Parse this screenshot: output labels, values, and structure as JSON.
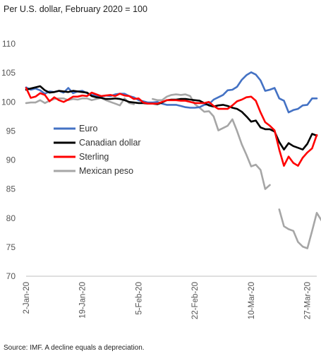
{
  "chart_data": {
    "type": "line",
    "subtitle": "Per U.S. dollar, February 2020 = 100",
    "source": "Source: IMF. A decline equals a depreciation.",
    "ylim": [
      70,
      110
    ],
    "yticks": [
      "70",
      "75",
      "80",
      "85",
      "90",
      "95",
      "100",
      "105",
      "110"
    ],
    "xlim": [
      0,
      61
    ],
    "xticks": [
      {
        "label": "2-Jan-20",
        "x": 0
      },
      {
        "label": "19-Jan-20",
        "x": 12
      },
      {
        "label": "5-Feb-20",
        "x": 24
      },
      {
        "label": "22-Feb-20",
        "x": 36
      },
      {
        "label": "10-Mar-20",
        "x": 48
      },
      {
        "label": "27-Mar-20",
        "x": 60
      }
    ],
    "grid": false,
    "legend_position": "left-middle",
    "series": [
      {
        "name": "Euro",
        "color": "#4472C4",
        "points": [
          [
            0,
            102.5
          ],
          [
            1,
            102.1
          ],
          [
            2,
            102.3
          ],
          [
            3,
            102.0
          ],
          [
            4,
            101.4
          ],
          [
            5,
            101.8
          ],
          [
            6,
            101.7
          ],
          [
            7,
            101.9
          ],
          [
            8,
            101.6
          ],
          [
            9,
            102.4
          ],
          [
            10,
            101.5
          ],
          [
            11,
            101.8
          ],
          [
            12,
            101.9
          ],
          [
            13,
            101.5
          ],
          [
            14,
            101.2
          ],
          [
            15,
            101.1
          ],
          [
            16,
            100.9
          ],
          [
            17,
            101.1
          ],
          [
            18,
            101.0
          ],
          [
            19,
            101.3
          ],
          [
            20,
            101.4
          ],
          [
            21,
            101.4
          ],
          [
            22,
            101.0
          ],
          [
            23,
            100.8
          ],
          [
            24,
            100.3
          ],
          [
            25,
            100.1
          ],
          [
            26,
            99.9
          ],
          [
            27,
            99.9
          ],
          [
            28,
            100.0
          ],
          [
            29,
            99.7
          ],
          [
            30,
            99.5
          ],
          [
            31,
            99.5
          ],
          [
            32,
            99.5
          ],
          [
            33,
            99.3
          ],
          [
            34,
            99.1
          ],
          [
            35,
            99.0
          ],
          [
            36,
            99.0
          ],
          [
            37,
            99.1
          ],
          [
            38,
            99.5
          ],
          [
            39,
            99.6
          ],
          [
            40,
            100.4
          ],
          [
            41,
            100.8
          ],
          [
            42,
            101.2
          ],
          [
            43,
            102.0
          ],
          [
            44,
            102.1
          ],
          [
            45,
            102.6
          ],
          [
            46,
            103.8
          ],
          [
            47,
            104.6
          ],
          [
            48,
            105.1
          ],
          [
            49,
            104.7
          ],
          [
            50,
            103.7
          ],
          [
            51,
            101.9
          ],
          [
            52,
            102.1
          ],
          [
            53,
            102.4
          ],
          [
            54,
            100.6
          ],
          [
            55,
            100.2
          ],
          [
            56,
            98.2
          ],
          [
            57,
            98.6
          ],
          [
            58,
            98.8
          ],
          [
            59,
            99.4
          ],
          [
            60,
            99.5
          ],
          [
            61,
            100.6
          ],
          [
            62,
            100.6
          ]
        ]
      },
      {
        "name": "Canadian dollar",
        "color": "#000000",
        "points": [
          [
            0,
            102.1
          ],
          [
            1,
            102.3
          ],
          [
            2,
            102.5
          ],
          [
            3,
            102.7
          ],
          [
            4,
            102.0
          ],
          [
            5,
            101.6
          ],
          [
            6,
            101.7
          ],
          [
            7,
            101.9
          ],
          [
            8,
            101.8
          ],
          [
            9,
            101.7
          ],
          [
            10,
            101.9
          ],
          [
            11,
            101.8
          ],
          [
            12,
            101.7
          ],
          [
            13,
            101.6
          ],
          [
            14,
            101.0
          ],
          [
            15,
            100.8
          ],
          [
            16,
            100.7
          ],
          [
            17,
            100.5
          ],
          [
            18,
            100.5
          ],
          [
            19,
            100.6
          ],
          [
            20,
            100.5
          ],
          [
            21,
            100.3
          ],
          [
            22,
            100.0
          ],
          [
            23,
            99.9
          ],
          [
            24,
            99.8
          ],
          [
            25,
            99.8
          ],
          [
            26,
            99.7
          ],
          [
            27,
            99.7
          ],
          [
            28,
            99.6
          ],
          [
            29,
            99.9
          ],
          [
            30,
            100.3
          ],
          [
            31,
            100.4
          ],
          [
            32,
            100.4
          ],
          [
            33,
            100.5
          ],
          [
            34,
            100.5
          ],
          [
            35,
            100.4
          ],
          [
            36,
            100.3
          ],
          [
            37,
            100.2
          ],
          [
            38,
            99.8
          ],
          [
            39,
            99.4
          ],
          [
            40,
            99.2
          ],
          [
            41,
            99.4
          ],
          [
            42,
            99.5
          ],
          [
            43,
            99.3
          ],
          [
            44,
            99.0
          ],
          [
            45,
            98.8
          ],
          [
            46,
            98.3
          ],
          [
            47,
            97.5
          ],
          [
            48,
            96.6
          ],
          [
            49,
            96.8
          ],
          [
            50,
            95.6
          ],
          [
            51,
            95.3
          ],
          [
            52,
            95.3
          ],
          [
            53,
            94.9
          ],
          [
            54,
            93.1
          ],
          [
            55,
            91.8
          ],
          [
            56,
            92.9
          ],
          [
            57,
            92.4
          ],
          [
            58,
            92.1
          ],
          [
            59,
            91.8
          ],
          [
            60,
            92.8
          ],
          [
            61,
            94.5
          ],
          [
            62,
            94.2
          ]
        ]
      },
      {
        "name": "Sterling",
        "color": "#FF0000",
        "points": [
          [
            0,
            102.4
          ],
          [
            1,
            100.7
          ],
          [
            2,
            100.9
          ],
          [
            3,
            101.5
          ],
          [
            4,
            101.2
          ],
          [
            5,
            100.1
          ],
          [
            6,
            100.8
          ],
          [
            7,
            100.3
          ],
          [
            8,
            100.0
          ],
          [
            9,
            100.4
          ],
          [
            10,
            100.9
          ],
          [
            11,
            100.9
          ],
          [
            12,
            101.1
          ],
          [
            13,
            101.0
          ],
          [
            14,
            101.6
          ],
          [
            15,
            101.3
          ],
          [
            16,
            101.0
          ],
          [
            17,
            101.1
          ],
          [
            18,
            101.2
          ],
          [
            19,
            101.0
          ],
          [
            20,
            101.4
          ],
          [
            21,
            101.1
          ],
          [
            22,
            101.0
          ],
          [
            23,
            100.5
          ],
          [
            24,
            100.6
          ],
          [
            25,
            99.9
          ],
          [
            26,
            99.7
          ],
          [
            27,
            99.7
          ],
          [
            28,
            99.7
          ],
          [
            29,
            100.0
          ],
          [
            30,
            100.3
          ],
          [
            31,
            100.3
          ],
          [
            32,
            100.3
          ],
          [
            33,
            100.2
          ],
          [
            34,
            100.2
          ],
          [
            35,
            100.0
          ],
          [
            36,
            99.8
          ],
          [
            37,
            99.8
          ],
          [
            38,
            99.8
          ],
          [
            39,
            100.0
          ],
          [
            40,
            99.3
          ],
          [
            41,
            98.8
          ],
          [
            42,
            98.8
          ],
          [
            43,
            98.8
          ],
          [
            44,
            99.4
          ],
          [
            45,
            100.1
          ],
          [
            46,
            100.4
          ],
          [
            47,
            100.8
          ],
          [
            48,
            100.9
          ],
          [
            49,
            100.2
          ],
          [
            50,
            98.2
          ],
          [
            51,
            96.5
          ],
          [
            52,
            95.9
          ],
          [
            53,
            95.1
          ],
          [
            54,
            91.8
          ],
          [
            55,
            89.0
          ],
          [
            56,
            90.6
          ],
          [
            57,
            89.5
          ],
          [
            58,
            89.0
          ],
          [
            59,
            90.4
          ],
          [
            60,
            91.3
          ],
          [
            61,
            92.0
          ],
          [
            62,
            94.3
          ]
        ]
      },
      {
        "name": "Mexican peso",
        "color": "#A6A6A6",
        "points": [
          [
            0,
            99.8
          ],
          [
            1,
            99.9
          ],
          [
            2,
            99.9
          ],
          [
            3,
            100.3
          ],
          [
            4,
            99.8
          ],
          [
            5,
            100.2
          ],
          [
            6,
            100.5
          ],
          [
            7,
            100.6
          ],
          [
            8,
            100.6
          ],
          [
            9,
            100.3
          ],
          [
            10,
            100.5
          ],
          [
            11,
            100.4
          ],
          [
            12,
            100.6
          ],
          [
            13,
            100.6
          ],
          [
            14,
            100.3
          ],
          [
            15,
            100.5
          ],
          [
            16,
            100.7
          ],
          [
            17,
            100.3
          ],
          [
            18,
            100.0
          ],
          [
            19,
            99.7
          ],
          [
            20,
            99.4
          ],
          [
            21,
            100.6
          ],
          [
            22,
            99.8
          ],
          [
            23,
            99.6
          ],
          [
            24,
            null
          ],
          [
            25,
            null
          ],
          [
            26,
            null
          ],
          [
            27,
            100.5
          ],
          [
            28,
            100.3
          ],
          [
            29,
            100.3
          ],
          [
            30,
            100.9
          ],
          [
            31,
            101.2
          ],
          [
            32,
            101.3
          ],
          [
            33,
            101.2
          ],
          [
            34,
            101.3
          ],
          [
            35,
            101.0
          ],
          [
            36,
            99.6
          ],
          [
            37,
            99.0
          ],
          [
            38,
            98.3
          ],
          [
            39,
            98.4
          ],
          [
            40,
            97.5
          ],
          [
            41,
            95.1
          ],
          [
            42,
            95.5
          ],
          [
            43,
            95.9
          ],
          [
            44,
            97.0
          ],
          [
            45,
            95.0
          ],
          [
            46,
            92.7
          ],
          [
            47,
            90.9
          ],
          [
            48,
            88.9
          ],
          [
            49,
            89.2
          ],
          [
            50,
            88.3
          ],
          [
            51,
            85.0
          ],
          [
            52,
            85.7
          ],
          [
            53,
            null
          ],
          [
            54,
            81.5
          ],
          [
            55,
            78.6
          ],
          [
            56,
            78.1
          ],
          [
            57,
            77.8
          ],
          [
            58,
            75.9
          ],
          [
            59,
            75.1
          ],
          [
            60,
            74.8
          ],
          [
            61,
            77.8
          ],
          [
            62,
            80.9
          ],
          [
            63,
            79.6
          ]
        ]
      }
    ]
  }
}
